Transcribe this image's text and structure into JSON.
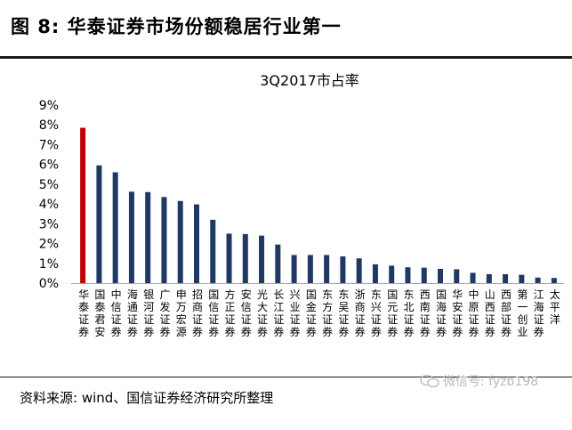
{
  "figure": {
    "title": "图 8:  华泰证券市场份额稳居行业第一",
    "source": "资料来源:  wind、国信证券经济研究所整理"
  },
  "watermark": {
    "text": "微信号: fyzb198",
    "icon": "wechat-icon"
  },
  "colors": {
    "highlight_bar": "#c00000",
    "bar": "#1f3864"
  },
  "chart_data": {
    "type": "bar",
    "title": "3Q2017市占率",
    "xlabel": "",
    "ylabel": "",
    "ylim": [
      0,
      9
    ],
    "yticks": [
      "0%",
      "1%",
      "2%",
      "3%",
      "4%",
      "5%",
      "6%",
      "7%",
      "8%",
      "9%"
    ],
    "unit": "%",
    "grid": false,
    "legend": "none",
    "categories": [
      "华泰证券",
      "国泰君安",
      "中信证券",
      "海通证券",
      "银河证券",
      "广发证券",
      "申万宏源",
      "招商证券",
      "国信证券",
      "方正证券",
      "安信证券",
      "光大证券",
      "长江证券",
      "兴业证券",
      "国金证券",
      "东方证券",
      "东吴证券",
      "浙商证券",
      "东兴证券",
      "国元证券",
      "东北证券",
      "西南证券",
      "国海证券",
      "华安证券",
      "中原证券",
      "山西证券",
      "西部证券",
      "第一创业",
      "江海证券",
      "太平洋"
    ],
    "values": [
      7.85,
      5.95,
      5.6,
      4.62,
      4.6,
      4.35,
      4.15,
      3.98,
      3.2,
      2.5,
      2.48,
      2.4,
      1.95,
      1.42,
      1.42,
      1.42,
      1.35,
      1.25,
      0.95,
      0.88,
      0.8,
      0.78,
      0.72,
      0.7,
      0.52,
      0.45,
      0.45,
      0.42,
      0.28,
      0.26
    ],
    "highlight_index": 0
  }
}
